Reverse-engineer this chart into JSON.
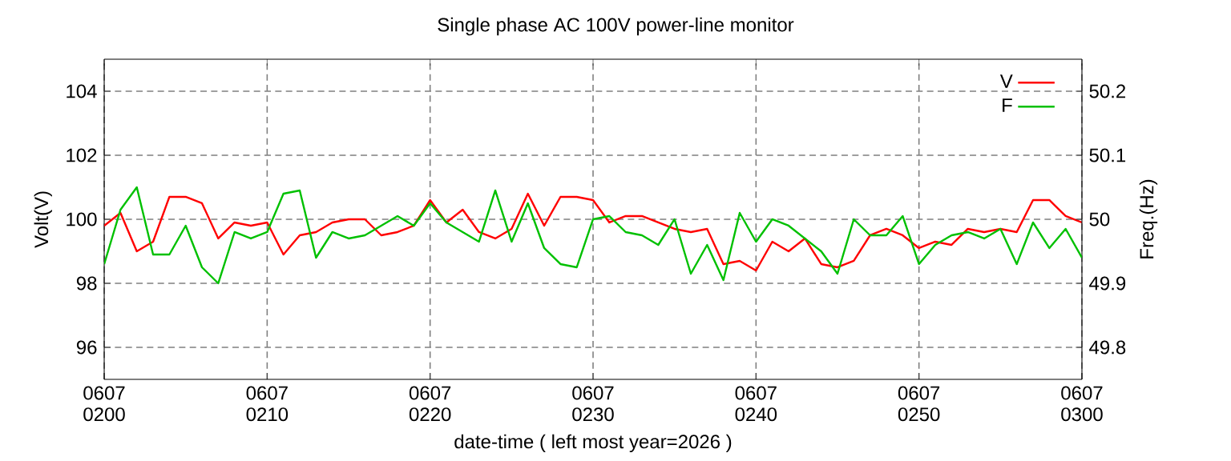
{
  "chart_data": {
    "type": "line",
    "title": "Single phase AC 100V power-line monitor",
    "xlabel": "date-time ( left most year=2026 )",
    "ylabel": "Volt(V)",
    "y2label": "Freq.(Hz)",
    "xlim": [
      "2026-06-07T02:00",
      "2026-06-07T03:00"
    ],
    "xticks": [
      {
        "value": "2026-06-07T02:00",
        "label": "0607 0200"
      },
      {
        "value": "2026-06-07T02:10",
        "label": "0607 0210"
      },
      {
        "value": "2026-06-07T02:20",
        "label": "0607 0220"
      },
      {
        "value": "2026-06-07T02:30",
        "label": "0607 0230"
      },
      {
        "value": "2026-06-07T02:40",
        "label": "0607 0240"
      },
      {
        "value": "2026-06-07T02:50",
        "label": "0607 0250"
      },
      {
        "value": "2026-06-07T03:00",
        "label": "0607 0300"
      }
    ],
    "ylim": [
      95,
      105
    ],
    "yticks": [
      96,
      98,
      100,
      102,
      104
    ],
    "y2lim": [
      49.75,
      50.25
    ],
    "y2ticks": [
      49.8,
      49.9,
      50,
      50.1,
      50.2
    ],
    "grid": true,
    "legend": "top right",
    "x": [
      "2026-06-07T02:00",
      "2026-06-07T02:01",
      "2026-06-07T02:02",
      "2026-06-07T02:03",
      "2026-06-07T02:04",
      "2026-06-07T02:05",
      "2026-06-07T02:06",
      "2026-06-07T02:07",
      "2026-06-07T02:08",
      "2026-06-07T02:09",
      "2026-06-07T02:10",
      "2026-06-07T02:11",
      "2026-06-07T02:12",
      "2026-06-07T02:13",
      "2026-06-07T02:14",
      "2026-06-07T02:15",
      "2026-06-07T02:16",
      "2026-06-07T02:17",
      "2026-06-07T02:18",
      "2026-06-07T02:19",
      "2026-06-07T02:20",
      "2026-06-07T02:21",
      "2026-06-07T02:22",
      "2026-06-07T02:23",
      "2026-06-07T02:24",
      "2026-06-07T02:25",
      "2026-06-07T02:26",
      "2026-06-07T02:27",
      "2026-06-07T02:28",
      "2026-06-07T02:29",
      "2026-06-07T02:30",
      "2026-06-07T02:31",
      "2026-06-07T02:32",
      "2026-06-07T02:33",
      "2026-06-07T02:34",
      "2026-06-07T02:35",
      "2026-06-07T02:36",
      "2026-06-07T02:37",
      "2026-06-07T02:38",
      "2026-06-07T02:39",
      "2026-06-07T02:40",
      "2026-06-07T02:41",
      "2026-06-07T02:42",
      "2026-06-07T02:43",
      "2026-06-07T02:44",
      "2026-06-07T02:45",
      "2026-06-07T02:46",
      "2026-06-07T02:47",
      "2026-06-07T02:48",
      "2026-06-07T02:49",
      "2026-06-07T02:50",
      "2026-06-07T02:51",
      "2026-06-07T02:52",
      "2026-06-07T02:53",
      "2026-06-07T02:54",
      "2026-06-07T02:55",
      "2026-06-07T02:56",
      "2026-06-07T02:57",
      "2026-06-07T02:58",
      "2026-06-07T02:59",
      "2026-06-07T03:00"
    ],
    "series": [
      {
        "name": "V",
        "color": "#ff0000",
        "values": [
          99.8,
          100.2,
          99.0,
          99.3,
          100.7,
          100.7,
          100.5,
          99.4,
          99.9,
          99.8,
          99.9,
          98.9,
          99.5,
          99.6,
          99.9,
          100.0,
          100.0,
          99.5,
          99.6,
          99.8,
          100.6,
          99.9,
          100.3,
          99.6,
          99.4,
          99.7,
          100.8,
          99.8,
          100.7,
          100.7,
          100.6,
          99.9,
          100.1,
          100.1,
          99.9,
          99.7,
          99.6,
          99.7,
          98.6,
          98.7,
          98.4,
          99.3,
          99.0,
          99.4,
          98.6,
          98.5,
          98.7,
          99.5,
          99.7,
          99.5,
          99.1,
          99.3,
          99.2,
          99.7,
          99.6,
          99.7,
          99.6,
          100.6,
          100.6,
          100.1,
          99.9
        ]
      },
      {
        "name": "F",
        "color": "#00c000",
        "axis": "y2",
        "values": [
          49.93,
          50.015,
          50.05,
          49.945,
          49.945,
          49.99,
          49.925,
          49.9,
          49.98,
          49.97,
          49.98,
          50.04,
          50.045,
          49.94,
          49.98,
          49.97,
          49.975,
          49.99,
          50.005,
          49.99,
          50.025,
          49.995,
          49.98,
          49.965,
          50.045,
          49.965,
          50.025,
          49.955,
          49.93,
          49.925,
          50.0,
          50.005,
          49.98,
          49.975,
          49.96,
          50.0,
          49.915,
          49.96,
          49.905,
          50.01,
          49.965,
          50.0,
          49.99,
          49.97,
          49.95,
          49.915,
          50.0,
          49.975,
          49.975,
          50.005,
          49.93,
          49.96,
          49.975,
          49.98,
          49.97,
          49.985,
          49.93,
          49.995,
          49.955,
          49.985,
          49.94
        ]
      }
    ]
  }
}
